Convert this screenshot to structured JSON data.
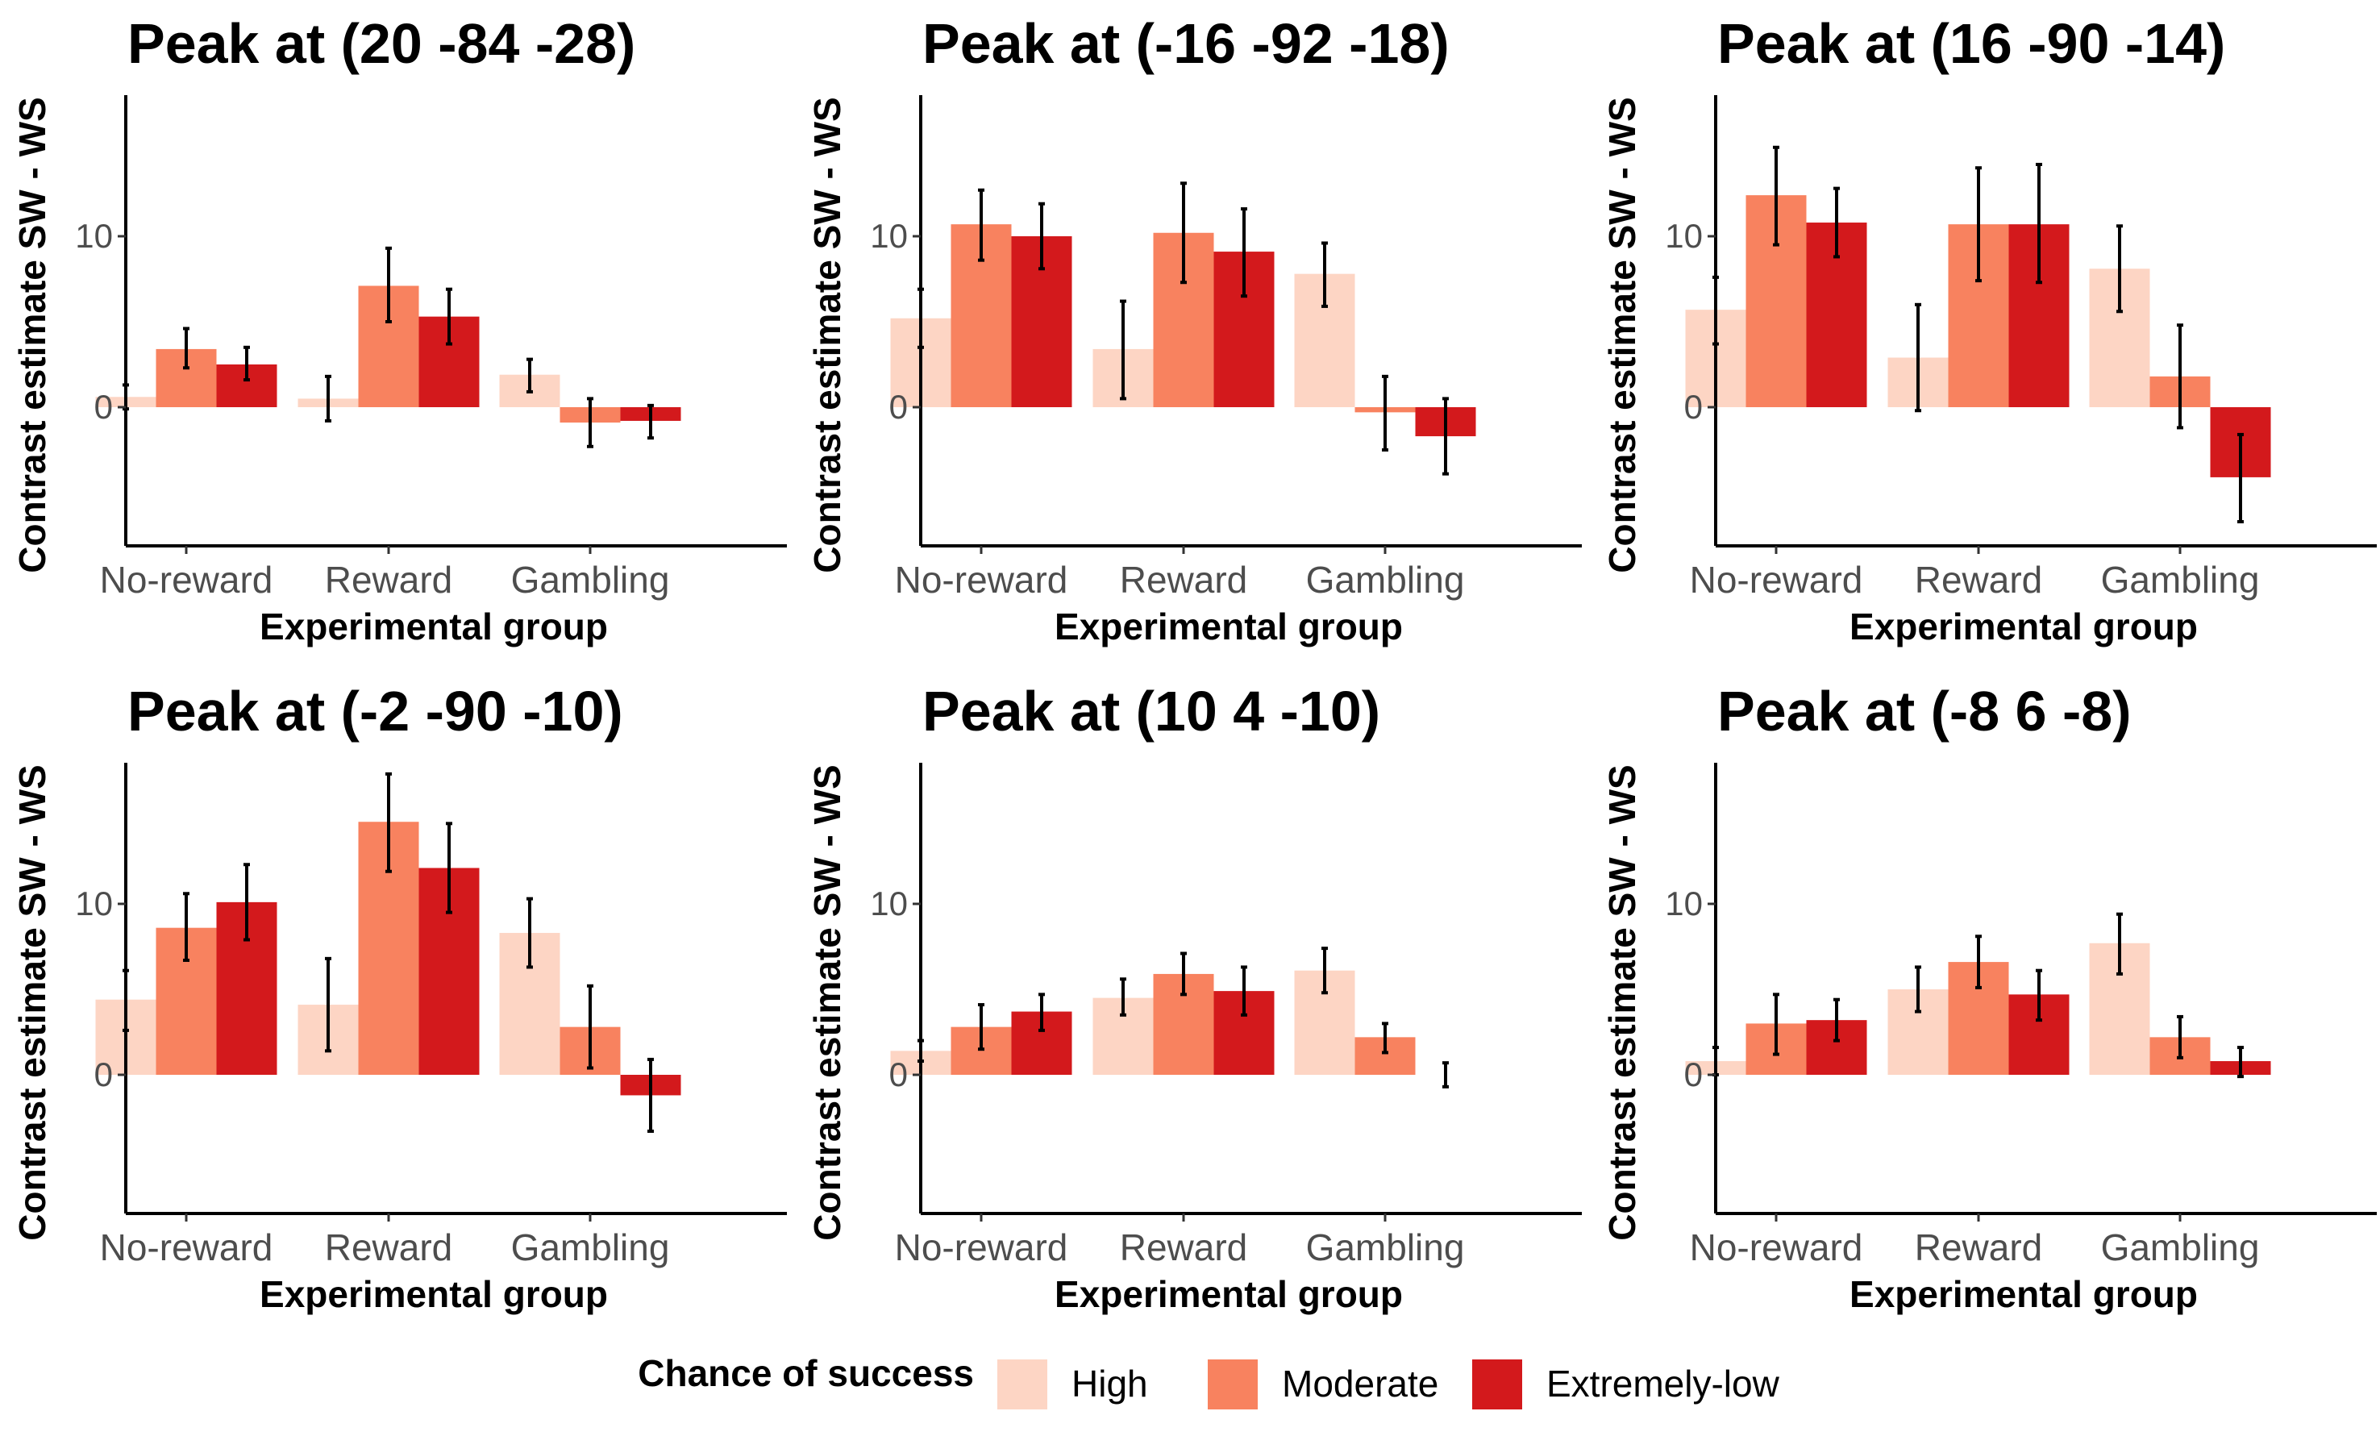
{
  "chart_data": {
    "type": "bar",
    "categories": [
      "No-reward",
      "Reward",
      "Gambling"
    ],
    "xlabel": "Experimental group",
    "ylabel": "Contrast estimate SW - WS",
    "ylim": [
      -8,
      18
    ],
    "yticks": [
      0,
      10
    ],
    "legend": {
      "title": "Chance of success",
      "placement": "bottom",
      "entries": [
        "High",
        "Moderate",
        "Extremely-low"
      ]
    },
    "colors": {
      "High": "#fdd5c4",
      "Moderate": "#f8825f",
      "Extremely-low": "#d3191c"
    },
    "panels": [
      {
        "title": "Peak at (20 -84 -28)",
        "series": [
          {
            "name": "High",
            "values": [
              0.6,
              0.5,
              1.9
            ],
            "lower": [
              -0.1,
              -0.8,
              0.9
            ],
            "upper": [
              1.3,
              1.8,
              2.8
            ]
          },
          {
            "name": "Moderate",
            "values": [
              3.4,
              7.1,
              -0.9
            ],
            "lower": [
              2.3,
              5.0,
              -2.3
            ],
            "upper": [
              4.6,
              9.3,
              0.5
            ]
          },
          {
            "name": "Extremely-low",
            "values": [
              2.5,
              5.3,
              -0.8
            ],
            "lower": [
              1.6,
              3.7,
              -1.8
            ],
            "upper": [
              3.5,
              6.9,
              0.1
            ]
          }
        ]
      },
      {
        "title": "Peak at (-16 -92 -18)",
        "series": [
          {
            "name": "High",
            "values": [
              5.2,
              3.4,
              7.8
            ],
            "lower": [
              3.5,
              0.5,
              5.9
            ],
            "upper": [
              6.9,
              6.2,
              9.6
            ]
          },
          {
            "name": "Moderate",
            "values": [
              10.7,
              10.2,
              -0.3
            ],
            "lower": [
              8.6,
              7.3,
              -2.5
            ],
            "upper": [
              12.7,
              13.1,
              1.8
            ]
          },
          {
            "name": "Extremely-low",
            "values": [
              10.0,
              9.1,
              -1.7
            ],
            "lower": [
              8.1,
              6.5,
              -3.9
            ],
            "upper": [
              11.9,
              11.6,
              0.5
            ]
          }
        ]
      },
      {
        "title": "Peak at (16 -90 -14)",
        "series": [
          {
            "name": "High",
            "values": [
              5.7,
              2.9,
              8.1
            ],
            "lower": [
              3.7,
              -0.2,
              5.6
            ],
            "upper": [
              7.6,
              6.0,
              10.6
            ]
          },
          {
            "name": "Moderate",
            "values": [
              12.4,
              10.7,
              1.8
            ],
            "lower": [
              9.5,
              7.4,
              -1.2
            ],
            "upper": [
              15.2,
              14.0,
              4.8
            ]
          },
          {
            "name": "Extremely-low",
            "values": [
              10.8,
              10.7,
              -4.1
            ],
            "lower": [
              8.8,
              7.3,
              -6.7
            ],
            "upper": [
              12.8,
              14.2,
              -1.6
            ]
          }
        ]
      },
      {
        "title": "Peak at (-2 -90 -10)",
        "series": [
          {
            "name": "High",
            "values": [
              4.4,
              4.1,
              8.3
            ],
            "lower": [
              2.6,
              1.4,
              6.3
            ],
            "upper": [
              6.1,
              6.8,
              10.3
            ]
          },
          {
            "name": "Moderate",
            "values": [
              8.6,
              14.8,
              2.8
            ],
            "lower": [
              6.7,
              11.9,
              0.4
            ],
            "upper": [
              10.6,
              17.6,
              5.2
            ]
          },
          {
            "name": "Extremely-low",
            "values": [
              10.1,
              12.1,
              -1.2
            ],
            "lower": [
              7.9,
              9.5,
              -3.3
            ],
            "upper": [
              12.3,
              14.7,
              0.9
            ]
          }
        ]
      },
      {
        "title": "Peak at (10 4 -10)",
        "series": [
          {
            "name": "High",
            "values": [
              1.4,
              4.5,
              6.1
            ],
            "lower": [
              0.8,
              3.5,
              4.8
            ],
            "upper": [
              2.0,
              5.6,
              7.4
            ]
          },
          {
            "name": "Moderate",
            "values": [
              2.8,
              5.9,
              2.2
            ],
            "lower": [
              1.5,
              4.7,
              1.3
            ],
            "upper": [
              4.1,
              7.1,
              3.0
            ]
          },
          {
            "name": "Extremely-low",
            "values": [
              3.7,
              4.9,
              0.0
            ],
            "lower": [
              2.6,
              3.5,
              -0.7
            ],
            "upper": [
              4.7,
              6.3,
              0.7
            ]
          }
        ]
      },
      {
        "title": "Peak at (-8 6 -8)",
        "series": [
          {
            "name": "High",
            "values": [
              0.8,
              5.0,
              7.7
            ],
            "lower": [
              0.0,
              3.7,
              5.9
            ],
            "upper": [
              1.6,
              6.3,
              9.4
            ]
          },
          {
            "name": "Moderate",
            "values": [
              3.0,
              6.6,
              2.2
            ],
            "lower": [
              1.2,
              5.1,
              1.0
            ],
            "upper": [
              4.7,
              8.1,
              3.4
            ]
          },
          {
            "name": "Extremely-low",
            "values": [
              3.2,
              4.7,
              0.8
            ],
            "lower": [
              2.0,
              3.2,
              -0.1
            ],
            "upper": [
              4.4,
              6.1,
              1.6
            ]
          }
        ]
      }
    ]
  }
}
